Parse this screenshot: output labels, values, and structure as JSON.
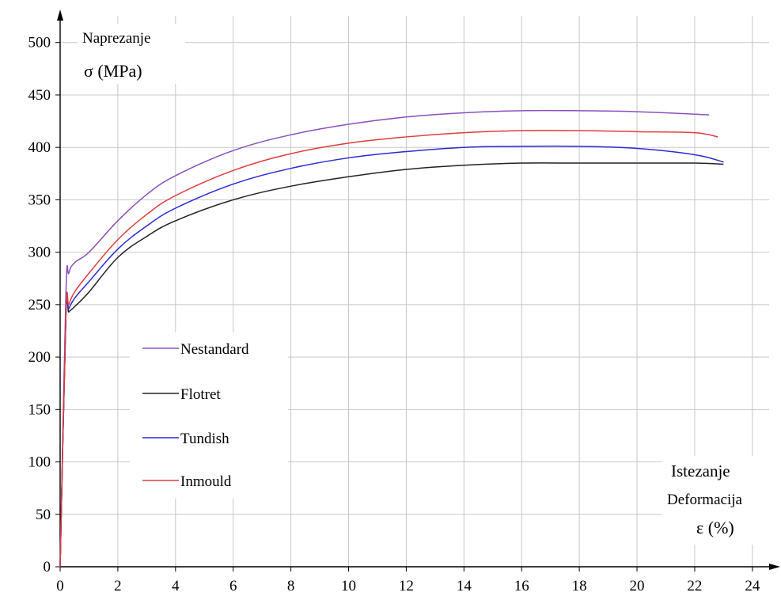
{
  "chart_data": {
    "type": "line",
    "ylabel_line1": "Naprezanje",
    "ylabel_line2": "σ (MPa)",
    "xlabel_line1": "Istezanje",
    "xlabel_line2": "Deformacija",
    "xlabel_line3": "ε (%)",
    "xlim": [
      0,
      24.8
    ],
    "ylim": [
      0,
      530
    ],
    "xticks": [
      0,
      2,
      4,
      6,
      8,
      10,
      12,
      14,
      16,
      18,
      20,
      22,
      24
    ],
    "yticks": [
      0,
      50,
      100,
      150,
      200,
      250,
      300,
      350,
      400,
      450,
      500
    ],
    "grid": true,
    "legend_position": "center-left",
    "series": [
      {
        "name": "Nestandard",
        "color": "#8b4fbf",
        "points": [
          [
            0,
            0
          ],
          [
            0.2,
            260
          ],
          [
            0.3,
            280
          ],
          [
            0.5,
            290
          ],
          [
            1,
            300
          ],
          [
            2,
            330
          ],
          [
            3,
            355
          ],
          [
            4,
            373
          ],
          [
            6,
            397
          ],
          [
            8,
            412
          ],
          [
            10,
            422
          ],
          [
            12,
            429
          ],
          [
            14,
            433
          ],
          [
            16,
            435
          ],
          [
            18,
            435
          ],
          [
            20,
            434
          ],
          [
            22.5,
            431
          ]
        ]
      },
      {
        "name": "Flotret",
        "color": "#222222",
        "points": [
          [
            0,
            0
          ],
          [
            0.2,
            238
          ],
          [
            0.3,
            243
          ],
          [
            0.5,
            248
          ],
          [
            1,
            262
          ],
          [
            2,
            295
          ],
          [
            3,
            315
          ],
          [
            4,
            330
          ],
          [
            6,
            350
          ],
          [
            8,
            363
          ],
          [
            10,
            372
          ],
          [
            12,
            379
          ],
          [
            14,
            383
          ],
          [
            16,
            385
          ],
          [
            18,
            385
          ],
          [
            20,
            385
          ],
          [
            22,
            385
          ],
          [
            23,
            384
          ]
        ]
      },
      {
        "name": "Tundish",
        "color": "#2b2bd6",
        "points": [
          [
            0,
            0
          ],
          [
            0.2,
            240
          ],
          [
            0.3,
            246
          ],
          [
            0.5,
            256
          ],
          [
            1,
            272
          ],
          [
            2,
            303
          ],
          [
            3,
            325
          ],
          [
            4,
            342
          ],
          [
            6,
            365
          ],
          [
            8,
            380
          ],
          [
            10,
            390
          ],
          [
            12,
            396
          ],
          [
            14,
            400
          ],
          [
            16,
            401
          ],
          [
            18,
            401
          ],
          [
            20,
            399
          ],
          [
            22,
            393
          ],
          [
            23,
            386
          ]
        ]
      },
      {
        "name": "Inmould",
        "color": "#e03c3c",
        "points": [
          [
            0,
            0
          ],
          [
            0.2,
            240
          ],
          [
            0.3,
            250
          ],
          [
            0.5,
            262
          ],
          [
            1,
            280
          ],
          [
            2,
            312
          ],
          [
            3,
            336
          ],
          [
            4,
            354
          ],
          [
            6,
            378
          ],
          [
            8,
            394
          ],
          [
            10,
            404
          ],
          [
            12,
            410
          ],
          [
            14,
            414
          ],
          [
            16,
            416
          ],
          [
            18,
            416
          ],
          [
            20,
            415
          ],
          [
            22,
            414
          ],
          [
            22.8,
            410
          ]
        ]
      }
    ]
  }
}
